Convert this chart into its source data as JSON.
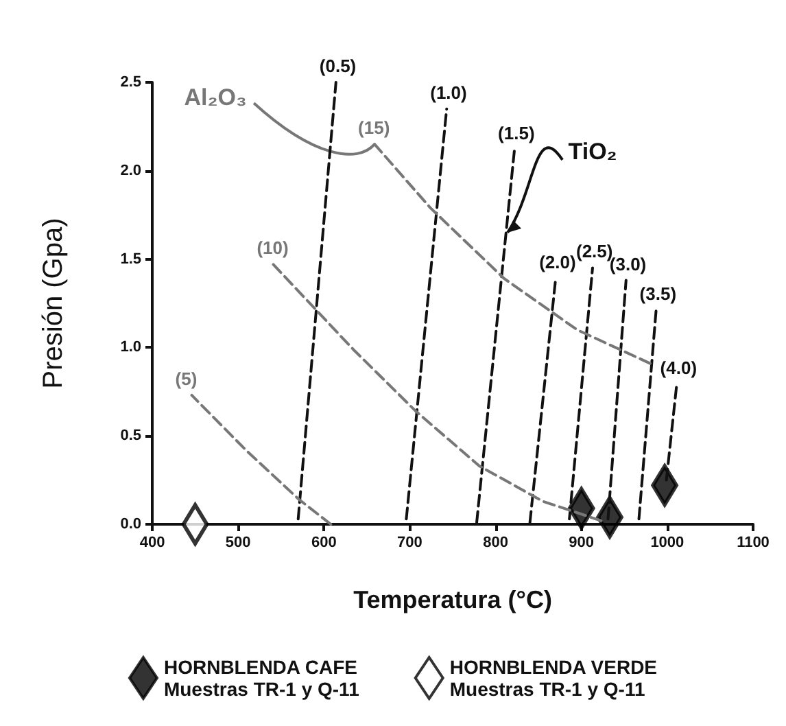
{
  "chart_data": {
    "type": "line",
    "xlabel": "Temperatura (°C)",
    "ylabel": "Presión (Gpa)",
    "xlim": [
      400,
      1100
    ],
    "xticks": [
      400,
      500,
      600,
      700,
      800,
      900,
      1000,
      1100
    ],
    "ylim": [
      0,
      2.5
    ],
    "yticks": [
      {
        "value": 0,
        "label": "0.0"
      },
      {
        "value": 0.5,
        "label": "0.5"
      },
      {
        "value": 1,
        "label": "1.0"
      },
      {
        "value": 1.5,
        "label": "1.5"
      },
      {
        "value": 2,
        "label": "2.0"
      },
      {
        "value": 2.5,
        "label": "2.5"
      }
    ],
    "grid": false,
    "legend": "bottom",
    "line_style": "dashed",
    "marker": "none",
    "series": [
      {
        "name": "(0.5)",
        "color": "#111111",
        "x": [
          570,
          614
        ],
        "values": [
          0.03,
          2.5
        ]
      },
      {
        "name": "(1.0)",
        "color": "#111111",
        "x": [
          696,
          743
        ],
        "values": [
          0.03,
          2.35
        ]
      },
      {
        "name": "(1.5)",
        "color": "#111111",
        "x": [
          778,
          822
        ],
        "values": [
          0.01,
          2.12
        ]
      },
      {
        "name": "(2.0)",
        "color": "#111111",
        "x": [
          840,
          870
        ],
        "values": [
          0.01,
          1.39
        ]
      },
      {
        "name": "(2.5)",
        "color": "#111111",
        "x": [
          886,
          913
        ],
        "values": [
          0.03,
          1.45
        ]
      },
      {
        "name": "(3.0)",
        "color": "#111111",
        "x": [
          931,
          952
        ],
        "values": [
          0.03,
          1.38
        ]
      },
      {
        "name": "(3.5)",
        "color": "#111111",
        "x": [
          967,
          987
        ],
        "values": [
          0.03,
          1.21
        ]
      },
      {
        "name": "(4.0)",
        "color": "#111111",
        "x": [
          999,
          1011
        ],
        "values": [
          0.25,
          0.79
        ]
      },
      {
        "name": "(5)",
        "color": "#777777",
        "x": [
          608,
          571,
          509,
          446
        ],
        "values": [
          0,
          0.14,
          0.42,
          0.73
        ]
      },
      {
        "name": "(10)",
        "color": "#777777",
        "x": [
          923,
          855,
          781,
          707,
          634,
          541
        ],
        "values": [
          0.02,
          0.13,
          0.33,
          0.64,
          0.99,
          1.47
        ]
      },
      {
        "name": "(15)",
        "color": "#777777",
        "x": [
          980,
          895,
          810,
          724,
          659
        ],
        "values": [
          0.91,
          1.1,
          1.39,
          1.79,
          2.15
        ]
      },
      {
        "name": "HORNBLENDA CAFE\nMuestras TR-1 y Q-11",
        "type": "scatter",
        "marker": "diamond",
        "color": "#000000",
        "x": [
          900,
          933,
          997
        ],
        "values": [
          0.09,
          0.04,
          0.22
        ]
      },
      {
        "name": "HORNBLENDA VERDE\nMuestras TR-1 y Q-11",
        "type": "scatter",
        "marker": "diamond",
        "color": "#ffffff",
        "x": [
          450
        ],
        "values": [
          0
        ]
      }
    ],
    "annotations": [
      {
        "text": "Al₂O₃",
        "x": 659,
        "y": 2.15
      },
      {
        "text": "TiO₂",
        "x": 814,
        "y": 1.65
      }
    ]
  }
}
